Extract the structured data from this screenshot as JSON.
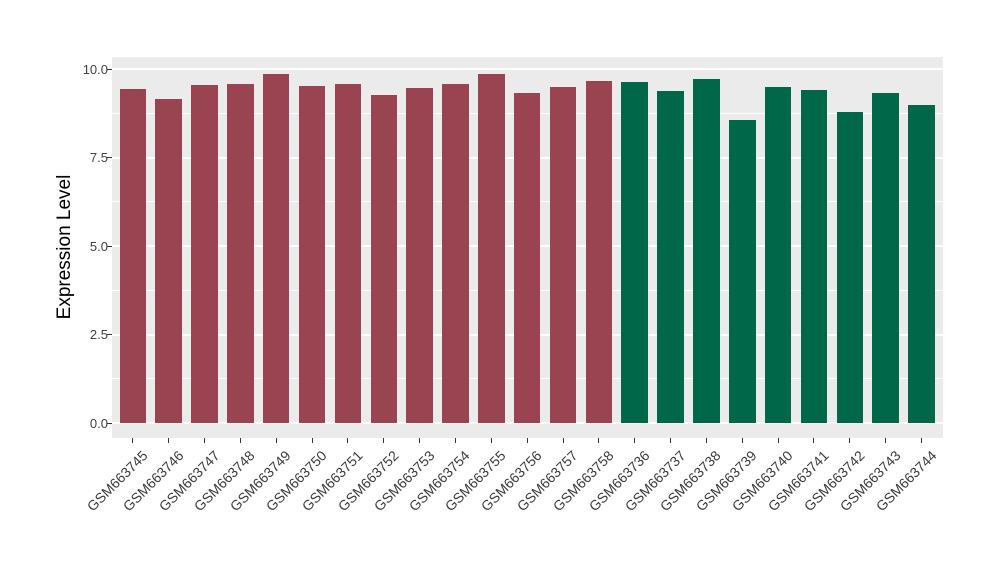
{
  "chart_data": {
    "type": "bar",
    "title": "",
    "xlabel": "",
    "ylabel": "Expression Level",
    "ylim": [
      0,
      10.4
    ],
    "grid": "on",
    "legend_position": "none",
    "panel_background": "#EBEBEB",
    "gridline_color": "#FFFFFF",
    "yticks": {
      "values": [
        0,
        2.5,
        5,
        7.5,
        10
      ],
      "labels": [
        "0.0",
        "2.5",
        "5.0",
        "7.5",
        "10.0"
      ]
    },
    "minor_gridlines": [
      1.25,
      3.75,
      6.25,
      8.75
    ],
    "group_colors": {
      "maroon": "#9A4351",
      "green": "#006748"
    },
    "categories": [
      "GSM663745",
      "GSM663746",
      "GSM663747",
      "GSM663748",
      "GSM663749",
      "GSM663750",
      "GSM663751",
      "GSM663752",
      "GSM663753",
      "GSM663754",
      "GSM663755",
      "GSM663756",
      "GSM663757",
      "GSM663758",
      "GSM663736",
      "GSM663737",
      "GSM663738",
      "GSM663739",
      "GSM663740",
      "GSM663741",
      "GSM663742",
      "GSM663743",
      "GSM663744"
    ],
    "bars": [
      {
        "label": "GSM663745",
        "value": 9.44,
        "group": "maroon"
      },
      {
        "label": "GSM663746",
        "value": 9.16,
        "group": "maroon"
      },
      {
        "label": "GSM663747",
        "value": 9.56,
        "group": "maroon"
      },
      {
        "label": "GSM663748",
        "value": 9.57,
        "group": "maroon"
      },
      {
        "label": "GSM663749",
        "value": 9.87,
        "group": "maroon"
      },
      {
        "label": "GSM663750",
        "value": 9.53,
        "group": "maroon"
      },
      {
        "label": "GSM663751",
        "value": 9.58,
        "group": "maroon"
      },
      {
        "label": "GSM663752",
        "value": 9.27,
        "group": "maroon"
      },
      {
        "label": "GSM663753",
        "value": 9.45,
        "group": "maroon"
      },
      {
        "label": "GSM663754",
        "value": 9.58,
        "group": "maroon"
      },
      {
        "label": "GSM663755",
        "value": 9.86,
        "group": "maroon"
      },
      {
        "label": "GSM663756",
        "value": 9.33,
        "group": "maroon"
      },
      {
        "label": "GSM663757",
        "value": 9.49,
        "group": "maroon"
      },
      {
        "label": "GSM663758",
        "value": 9.67,
        "group": "maroon"
      },
      {
        "label": "GSM663736",
        "value": 9.62,
        "group": "green"
      },
      {
        "label": "GSM663737",
        "value": 9.38,
        "group": "green"
      },
      {
        "label": "GSM663738",
        "value": 9.73,
        "group": "green"
      },
      {
        "label": "GSM663739",
        "value": 8.56,
        "group": "green"
      },
      {
        "label": "GSM663740",
        "value": 9.49,
        "group": "green"
      },
      {
        "label": "GSM663741",
        "value": 9.42,
        "group": "green"
      },
      {
        "label": "GSM663742",
        "value": 8.79,
        "group": "green"
      },
      {
        "label": "GSM663743",
        "value": 9.31,
        "group": "green"
      },
      {
        "label": "GSM663744",
        "value": 8.99,
        "group": "green"
      }
    ]
  }
}
